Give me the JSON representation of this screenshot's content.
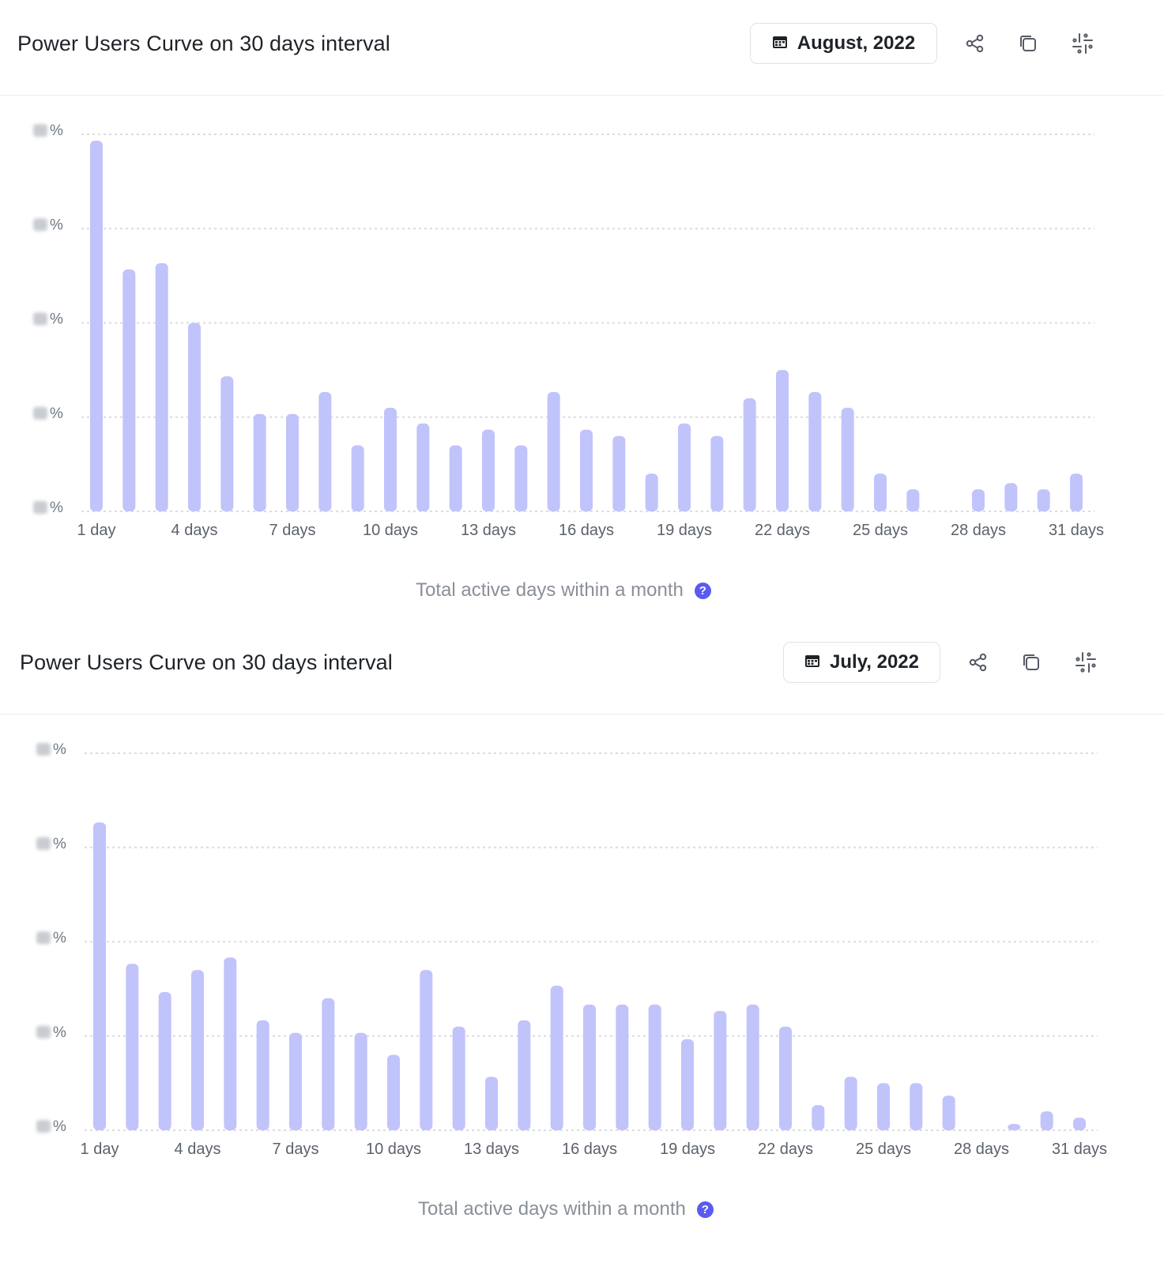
{
  "colors": {
    "bar": "#c1c3fb",
    "grid": "#d9dce1",
    "help": "#5b5bf0"
  },
  "panels": [
    {
      "title": "Power Users Curve on 30 days interval",
      "date_label": "August, 2022",
      "x_axis_title": "Total active days within a month",
      "icons": [
        "calendar-icon",
        "share-icon",
        "copy-icon",
        "slack-icon",
        "help-icon"
      ]
    },
    {
      "title": "Power Users Curve on 30 days interval",
      "date_label": "July, 2022",
      "x_axis_title": "Total active days within a month",
      "icons": [
        "calendar-icon",
        "share-icon",
        "copy-icon",
        "slack-icon",
        "help-icon"
      ]
    }
  ],
  "chart_data": [
    {
      "type": "bar",
      "unit": "%",
      "y_tick_labels": [
        "",
        "",
        "",
        "",
        ""
      ],
      "y_tick_values": [
        0,
        3,
        6,
        9,
        12
      ],
      "ylim": [
        0,
        12
      ],
      "grid": true,
      "categories": [
        "1 day",
        "2 days",
        "3 days",
        "4 days",
        "5 days",
        "6 days",
        "7 days",
        "8 days",
        "9 days",
        "10 days",
        "11 days",
        "12 days",
        "13 days",
        "14 days",
        "15 days",
        "16 days",
        "17 days",
        "18 days",
        "19 days",
        "20 days",
        "21 days",
        "22 days",
        "23 days",
        "24 days",
        "25 days",
        "26 days",
        "27 days",
        "28 days",
        "29 days",
        "30 days",
        "31 days"
      ],
      "x_tick_labels": [
        "1 day",
        "4 days",
        "7 days",
        "10 days",
        "13 days",
        "16 days",
        "19 days",
        "22 days",
        "25 days",
        "28 days",
        "31 days"
      ],
      "x_tick_indices": [
        0,
        3,
        6,
        9,
        12,
        15,
        18,
        21,
        24,
        27,
        30
      ],
      "values": [
        11.8,
        7.7,
        7.9,
        6.0,
        4.3,
        3.1,
        3.1,
        3.8,
        2.1,
        3.3,
        2.8,
        2.1,
        2.6,
        2.1,
        3.8,
        2.6,
        2.4,
        1.2,
        2.8,
        2.4,
        3.6,
        4.5,
        3.8,
        3.3,
        1.2,
        0.7,
        0.0,
        0.7,
        0.9,
        0.7,
        1.2
      ]
    },
    {
      "type": "bar",
      "unit": "%",
      "y_tick_labels": [
        "",
        "",
        "",
        "",
        ""
      ],
      "y_tick_values": [
        0,
        3,
        6,
        9,
        12
      ],
      "ylim": [
        0,
        12
      ],
      "grid": true,
      "categories": [
        "1 day",
        "2 days",
        "3 days",
        "4 days",
        "5 days",
        "6 days",
        "7 days",
        "8 days",
        "9 days",
        "10 days",
        "11 days",
        "12 days",
        "13 days",
        "14 days",
        "15 days",
        "16 days",
        "17 days",
        "18 days",
        "19 days",
        "20 days",
        "21 days",
        "22 days",
        "23 days",
        "24 days",
        "25 days",
        "26 days",
        "27 days",
        "28 days",
        "29 days",
        "30 days",
        "31 days"
      ],
      "x_tick_labels": [
        "1 day",
        "4 days",
        "7 days",
        "10 days",
        "13 days",
        "16 days",
        "19 days",
        "22 days",
        "25 days",
        "28 days",
        "31 days"
      ],
      "x_tick_indices": [
        0,
        3,
        6,
        9,
        12,
        15,
        18,
        21,
        24,
        27,
        30
      ],
      "values": [
        9.8,
        5.3,
        4.4,
        5.1,
        5.5,
        3.5,
        3.1,
        4.2,
        3.1,
        2.4,
        5.1,
        3.3,
        1.7,
        3.5,
        4.6,
        4.0,
        4.0,
        4.0,
        2.9,
        3.8,
        4.0,
        3.3,
        0.8,
        1.7,
        1.5,
        1.5,
        1.1,
        0.0,
        0.2,
        0.6,
        0.4
      ]
    }
  ]
}
